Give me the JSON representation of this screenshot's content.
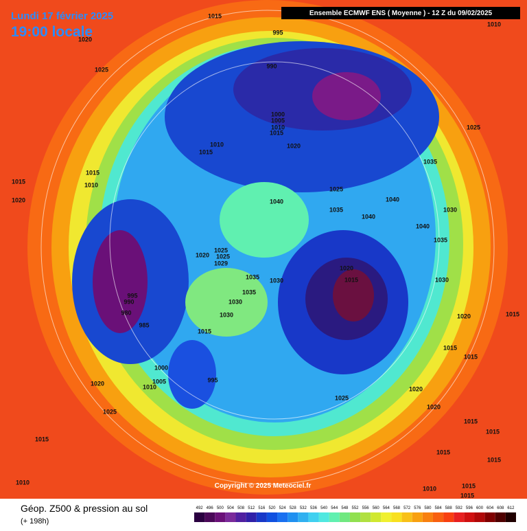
{
  "header": {
    "date": "Lundi 17 février 2025",
    "time": "19:00 locale",
    "model": "Ensemble ECMWF ENS  ( Moyenne )  - 12 Z du 09/02/2025"
  },
  "footer": {
    "title": "Géop. Z500 & pression au sol",
    "subtitle": "(+ 198h)",
    "copyright": "Copyright © 2025 Meteociel.fr"
  },
  "colorbar": {
    "ticks": [
      492,
      496,
      500,
      504,
      508,
      512,
      516,
      520,
      524,
      528,
      532,
      536,
      540,
      544,
      548,
      552,
      556,
      560,
      564,
      568,
      572,
      576,
      580,
      584,
      588,
      592,
      596,
      600,
      604,
      608,
      612
    ],
    "colors": [
      "#2a0040",
      "#4a0858",
      "#6a1078",
      "#7a2a9a",
      "#5020a0",
      "#3020a8",
      "#1838c8",
      "#1050e0",
      "#1a70f0",
      "#2090f0",
      "#30b0f0",
      "#40d0f0",
      "#50e8e0",
      "#60f0b0",
      "#70e880",
      "#90e050",
      "#b0e040",
      "#d0e830",
      "#f0f030",
      "#f8e020",
      "#f8c018",
      "#f8a010",
      "#f88010",
      "#f86010",
      "#f84010",
      "#e82020",
      "#d01010",
      "#b00808",
      "#800000",
      "#500000",
      "#200000"
    ]
  },
  "pressure_labels": [
    "1015",
    "995",
    "1020",
    "1025",
    "990",
    "1010",
    "1000",
    "1005",
    "1010",
    "1015",
    "1020",
    "1025",
    "1010",
    "1015",
    "1035",
    "1015",
    "1015",
    "1010",
    "1020",
    "1025",
    "1040",
    "1035",
    "1040",
    "1040",
    "1030",
    "1040",
    "1035",
    "1025",
    "1020",
    "1025",
    "1029",
    "1020",
    "1015",
    "1035",
    "1030",
    "1030",
    "995",
    "990",
    "980",
    "985",
    "1035",
    "1030",
    "1030",
    "1015",
    "1020",
    "1015",
    "1015",
    "1015",
    "1000",
    "1005",
    "1010",
    "995",
    "1020",
    "1020",
    "1025",
    "1020",
    "1025",
    "1015",
    "1015",
    "1015",
    "1015",
    "1015",
    "1010",
    "1010",
    "1015",
    "1015"
  ]
}
